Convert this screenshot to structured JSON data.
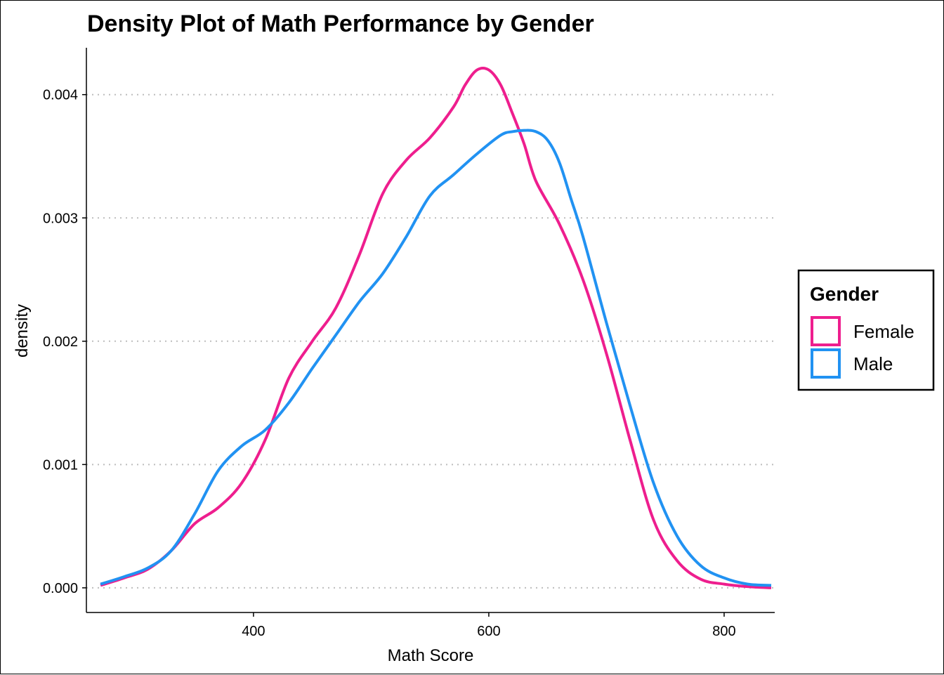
{
  "chart_data": {
    "type": "line",
    "title": "Density Plot of Math Performance by Gender",
    "xlabel": "Math Score",
    "ylabel": "density",
    "xlim": [
      258,
      843
    ],
    "ylim": [
      -0.0002,
      0.00438
    ],
    "x_ticks": [
      400,
      600,
      800
    ],
    "x_tick_labels": [
      "400",
      "600",
      "800"
    ],
    "y_ticks": [
      0.0,
      0.001,
      0.002,
      0.003,
      0.004
    ],
    "y_tick_labels": [
      "0.000",
      "0.001",
      "0.002",
      "0.003",
      "0.004"
    ],
    "grid": "horizontal dotted",
    "legend": {
      "title": "Gender",
      "position": "right"
    },
    "series": [
      {
        "name": "Female",
        "color": "#ee1e8e",
        "x": [
          270,
          290,
          310,
          330,
          350,
          370,
          390,
          410,
          430,
          450,
          470,
          490,
          510,
          530,
          550,
          570,
          580,
          590,
          600,
          610,
          620,
          630,
          640,
          660,
          680,
          700,
          720,
          740,
          760,
          780,
          800,
          820,
          840
        ],
        "y": [
          2e-05,
          8e-05,
          0.00015,
          0.0003,
          0.00052,
          0.00065,
          0.00085,
          0.0012,
          0.0017,
          0.002,
          0.00227,
          0.0027,
          0.0032,
          0.00347,
          0.00365,
          0.0039,
          0.00408,
          0.0042,
          0.0042,
          0.00408,
          0.00385,
          0.0036,
          0.0033,
          0.00295,
          0.0025,
          0.0019,
          0.0012,
          0.00055,
          0.00022,
          7e-05,
          3e-05,
          1e-05,
          0.0
        ]
      },
      {
        "name": "Male",
        "color": "#2192f2",
        "x": [
          270,
          290,
          310,
          330,
          350,
          370,
          390,
          410,
          430,
          450,
          470,
          490,
          510,
          530,
          550,
          570,
          590,
          610,
          620,
          630,
          640,
          650,
          660,
          670,
          680,
          700,
          720,
          740,
          760,
          780,
          800,
          820,
          840
        ],
        "y": [
          3e-05,
          9e-05,
          0.00016,
          0.0003,
          0.0006,
          0.00095,
          0.00115,
          0.00128,
          0.0015,
          0.00178,
          0.00205,
          0.00232,
          0.00255,
          0.00285,
          0.00318,
          0.00335,
          0.00352,
          0.00367,
          0.0037,
          0.00371,
          0.0037,
          0.00363,
          0.00345,
          0.00315,
          0.00285,
          0.00215,
          0.00148,
          0.00085,
          0.00042,
          0.00018,
          8e-05,
          3e-05,
          2e-05
        ]
      }
    ]
  }
}
